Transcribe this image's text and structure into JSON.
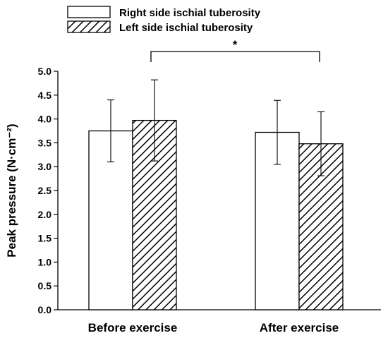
{
  "chart_data": {
    "type": "bar",
    "title": "",
    "xlabel": "",
    "ylabel": "Peak pressure (N·cm⁻²)",
    "ylim": [
      0,
      5
    ],
    "yticks": [
      "0.0",
      "0.5",
      "1.0",
      "1.5",
      "2.0",
      "2.5",
      "3.0",
      "3.5",
      "4.0",
      "4.5",
      "5.0"
    ],
    "categories": [
      "Before exercise",
      "After exercise"
    ],
    "series": [
      {
        "name": "Right side ischial tuberosity",
        "values": [
          3.75,
          3.72
        ],
        "errors": [
          0.65,
          0.67
        ],
        "fill": "#ffffff"
      },
      {
        "name": "Left side ischial tuberosity",
        "values": [
          3.97,
          3.48
        ],
        "errors": [
          0.85,
          0.67
        ],
        "fill": "hatched"
      }
    ],
    "significance": {
      "label": "*",
      "between": "Left side ischial tuberosity: Before exercise vs After exercise"
    },
    "legend_position": "top-left",
    "grid": false
  }
}
